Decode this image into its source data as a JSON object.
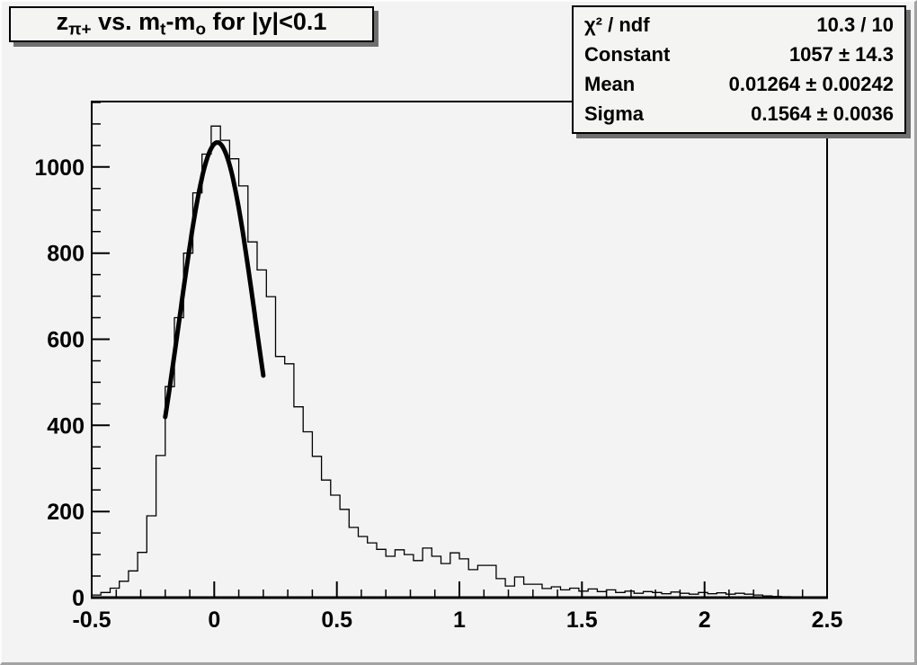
{
  "canvas": {
    "bg": "#f2f3f2",
    "pave_fill": "#f4f4f3",
    "shadow_color": "#6f6f6f",
    "line_color": "#000000"
  },
  "title": {
    "s0": "z",
    "s0_sub": "π+",
    "s1": " vs. m",
    "s1_sub": "t",
    "s2": "-m",
    "s2_sub": "o",
    "s3": " for |y|<0.1"
  },
  "stats": {
    "rows": [
      {
        "label": "χ² / ndf",
        "value": "10.3 / 10"
      },
      {
        "label": "Constant",
        "value": "1057 ± 14.3"
      },
      {
        "label": "Mean",
        "value": "0.01264 ± 0.00242"
      },
      {
        "label": "Sigma",
        "value": "0.1564 ± 0.0036"
      }
    ]
  },
  "chart_data": {
    "type": "bar",
    "subtype": "histogram-with-gaussian-fit",
    "title": "z_{π+} vs. m_t-m_o for |y|<0.1",
    "xlabel": "",
    "ylabel": "",
    "xlim": [
      -0.5,
      2.5
    ],
    "ylim": [
      0,
      1152
    ],
    "grid": false,
    "legend": "none",
    "bins": {
      "start": -0.5,
      "width": 0.0375,
      "count": 80,
      "values": [
        6,
        12,
        22,
        38,
        62,
        105,
        190,
        330,
        490,
        650,
        800,
        940,
        1030,
        1095,
        1062,
        1019,
        956,
        826,
        761,
        699,
        560,
        543,
        443,
        385,
        328,
        273,
        238,
        205,
        163,
        142,
        127,
        112,
        96,
        111,
        100,
        86,
        115,
        96,
        79,
        104,
        90,
        65,
        75,
        75,
        44,
        27,
        48,
        31,
        31,
        21,
        25,
        18,
        22,
        15,
        20,
        14,
        18,
        12,
        15,
        10,
        14,
        12,
        9,
        13,
        10,
        8,
        12,
        9,
        11,
        8,
        10,
        8,
        6,
        4,
        3,
        2,
        1,
        1,
        0,
        0
      ]
    },
    "fit": {
      "model": "gaussian",
      "constant": 1057,
      "mean": 0.01264,
      "sigma": 0.1564,
      "draw_range": [
        -0.2,
        0.2
      ],
      "chi2_ndf": "10.3 / 10"
    },
    "x_ticks": {
      "major_values": [
        -0.5,
        0,
        0.5,
        1,
        1.5,
        2,
        2.5
      ],
      "major_labels": [
        "-0.5",
        "0",
        "0.5",
        "1",
        "1.5",
        "2",
        "2.5"
      ],
      "minor_step": 0.1
    },
    "y_ticks": {
      "major_values": [
        0,
        200,
        400,
        600,
        800,
        1000
      ],
      "major_labels": [
        "0",
        "200",
        "400",
        "600",
        "800",
        "1000"
      ],
      "minor_step": 50
    }
  }
}
